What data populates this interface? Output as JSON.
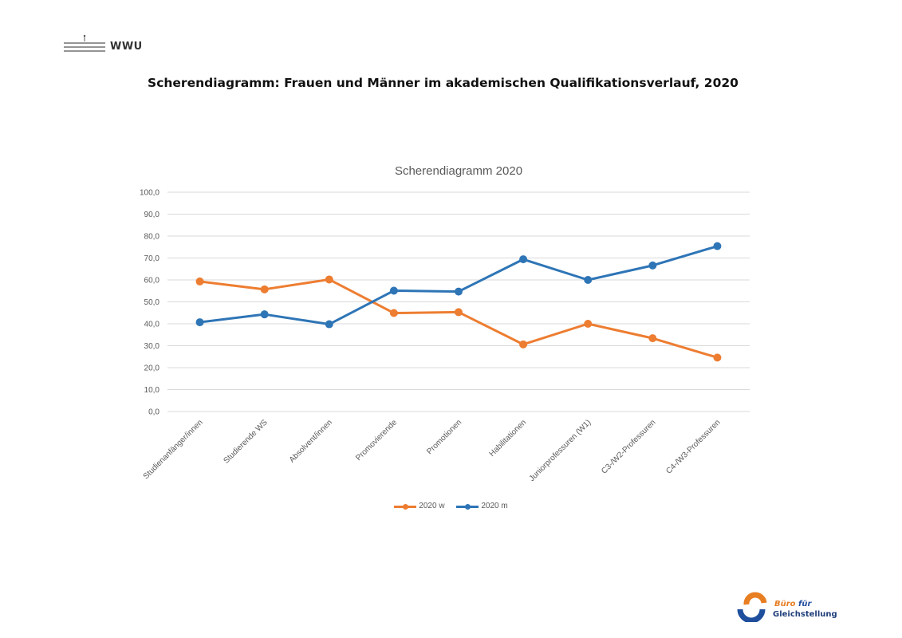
{
  "header": {
    "logo_text": "WWU",
    "title": "Scherendiagramm: Frauen und Männer im akademischen Qualifikationsverlauf, 2020"
  },
  "chart_data": {
    "type": "line",
    "title": "Scherendiagramm 2020",
    "xlabel": "",
    "ylabel": "",
    "ylim": [
      0,
      100
    ],
    "ytick_labels": [
      "0,0",
      "10,0",
      "20,0",
      "30,0",
      "40,0",
      "50,0",
      "60,0",
      "70,0",
      "80,0",
      "90,0",
      "100,0"
    ],
    "grid": true,
    "legend_position": "bottom",
    "categories": [
      "Studienanfänger/innen",
      "Studierende WS",
      "Absolvent/innen",
      "Promovierende",
      "Promotionen",
      "Habilitationen",
      "Juniorprofessuren (W1)",
      "C3-/W2-Professuren",
      "C4-/W3-Professuren"
    ],
    "series": [
      {
        "name": "2020 w",
        "color": "#ed7d31",
        "values": [
          59.3,
          55.7,
          60.2,
          44.9,
          45.3,
          30.6,
          40.0,
          33.4,
          24.6
        ]
      },
      {
        "name": "2020 m",
        "color": "#2e75b6",
        "values": [
          40.7,
          44.3,
          39.8,
          55.1,
          54.7,
          69.4,
          60.0,
          66.6,
          75.4
        ]
      }
    ]
  },
  "footer": {
    "logo_line1": "Büro",
    "logo_line1b": "für",
    "logo_line2": "Gleichstellung"
  }
}
